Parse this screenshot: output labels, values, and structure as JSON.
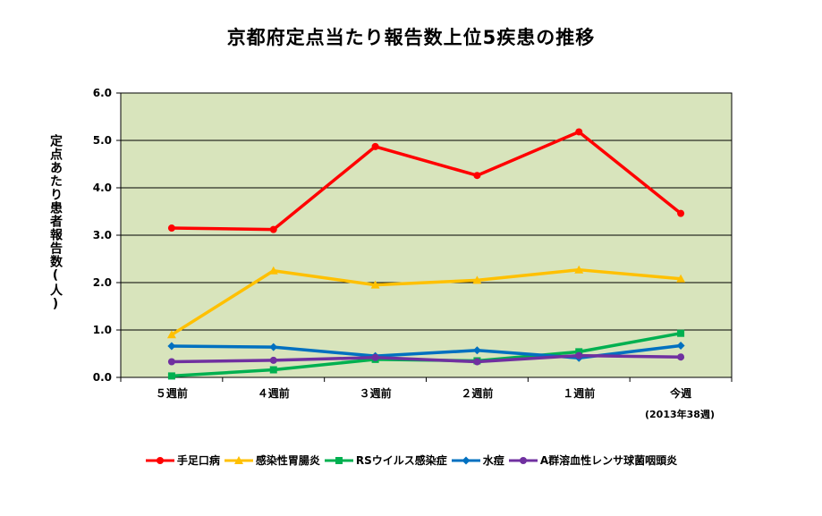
{
  "chart_data": {
    "type": "line",
    "title": "京都府定点当たり報告数上位5疾患の推移",
    "ylabel": "定点あたり患者報告数(人)",
    "xlabel": "",
    "categories": [
      "５週前",
      "４週前",
      "３週前",
      "２週前",
      "１週前",
      "今週"
    ],
    "category_note": "(2013年38週)",
    "ylim": [
      0,
      6
    ],
    "yticks": [
      "0.0",
      "1.0",
      "2.0",
      "3.0",
      "4.0",
      "5.0",
      "6.0"
    ],
    "grid": true,
    "legend_position": "bottom",
    "plot_background": "#d8e4bc",
    "series": [
      {
        "name": "手足口病",
        "color": "#ff0000",
        "marker": "circle",
        "values": [
          3.15,
          3.12,
          4.87,
          4.26,
          5.18,
          3.46
        ]
      },
      {
        "name": "感染性胃腸炎",
        "color": "#ffc000",
        "marker": "triangle",
        "values": [
          0.9,
          2.25,
          1.95,
          2.05,
          2.27,
          2.08
        ]
      },
      {
        "name": "RSウイルス感染症",
        "color": "#00b050",
        "marker": "square",
        "values": [
          0.03,
          0.16,
          0.38,
          0.35,
          0.54,
          0.93
        ]
      },
      {
        "name": "水痘",
        "color": "#0070c0",
        "marker": "diamond",
        "values": [
          0.66,
          0.64,
          0.45,
          0.57,
          0.41,
          0.67
        ]
      },
      {
        "name": "A群溶血性レンサ球菌咽頭炎",
        "color": "#7030a0",
        "marker": "circle",
        "values": [
          0.33,
          0.36,
          0.42,
          0.33,
          0.46,
          0.43
        ]
      }
    ]
  }
}
